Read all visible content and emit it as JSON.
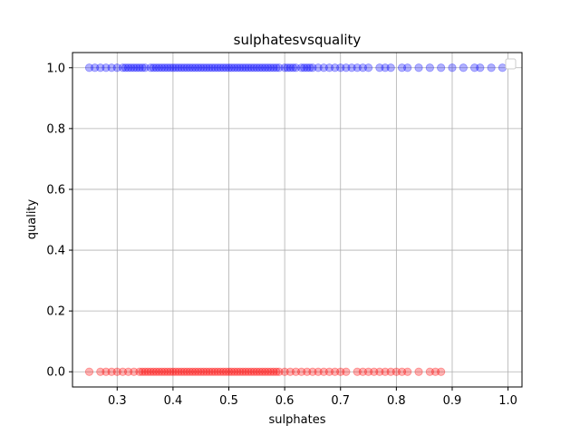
{
  "chart_data": {
    "type": "scatter",
    "title": "sulphatesvsquality",
    "xlabel": "sulphates",
    "ylabel": "quality",
    "xlim": [
      0.22,
      1.025
    ],
    "ylim": [
      -0.05,
      1.05
    ],
    "xticks": [
      0.3,
      0.4,
      0.5,
      0.6,
      0.7,
      0.8,
      0.9,
      1.0
    ],
    "xtick_labels": [
      "0.3",
      "0.4",
      "0.5",
      "0.6",
      "0.7",
      "0.8",
      "0.9",
      "1.0"
    ],
    "yticks": [
      0.0,
      0.2,
      0.4,
      0.6,
      0.8,
      1.0
    ],
    "ytick_labels": [
      "0.0",
      "0.2",
      "0.4",
      "0.6",
      "0.8",
      "1.0"
    ],
    "grid": true,
    "legend": "top-right",
    "series": [
      {
        "color": "#0000ff",
        "y": 1,
        "x": [
          0.25,
          0.26,
          0.27,
          0.28,
          0.29,
          0.3,
          0.31,
          0.315,
          0.32,
          0.325,
          0.33,
          0.335,
          0.34,
          0.345,
          0.35,
          0.36,
          0.365,
          0.37,
          0.375,
          0.38,
          0.385,
          0.39,
          0.395,
          0.4,
          0.405,
          0.41,
          0.415,
          0.42,
          0.425,
          0.43,
          0.435,
          0.44,
          0.445,
          0.45,
          0.455,
          0.46,
          0.465,
          0.47,
          0.475,
          0.48,
          0.485,
          0.49,
          0.495,
          0.5,
          0.505,
          0.51,
          0.515,
          0.52,
          0.525,
          0.53,
          0.535,
          0.54,
          0.545,
          0.55,
          0.555,
          0.56,
          0.565,
          0.57,
          0.575,
          0.58,
          0.585,
          0.59,
          0.6,
          0.605,
          0.61,
          0.615,
          0.62,
          0.63,
          0.635,
          0.64,
          0.645,
          0.65,
          0.66,
          0.67,
          0.68,
          0.69,
          0.7,
          0.71,
          0.72,
          0.73,
          0.74,
          0.75,
          0.77,
          0.78,
          0.79,
          0.81,
          0.82,
          0.84,
          0.86,
          0.88,
          0.9,
          0.92,
          0.94,
          0.95,
          0.97,
          0.99
        ]
      },
      {
        "color": "#ff0000",
        "y": 0,
        "x": [
          0.25,
          0.27,
          0.28,
          0.29,
          0.3,
          0.31,
          0.32,
          0.33,
          0.34,
          0.345,
          0.35,
          0.355,
          0.36,
          0.365,
          0.37,
          0.375,
          0.38,
          0.385,
          0.39,
          0.395,
          0.4,
          0.405,
          0.41,
          0.415,
          0.42,
          0.425,
          0.43,
          0.435,
          0.44,
          0.445,
          0.45,
          0.455,
          0.46,
          0.465,
          0.47,
          0.475,
          0.48,
          0.485,
          0.49,
          0.495,
          0.5,
          0.505,
          0.51,
          0.515,
          0.52,
          0.525,
          0.53,
          0.535,
          0.54,
          0.545,
          0.55,
          0.555,
          0.56,
          0.565,
          0.57,
          0.575,
          0.58,
          0.585,
          0.59,
          0.6,
          0.61,
          0.62,
          0.63,
          0.64,
          0.65,
          0.66,
          0.67,
          0.68,
          0.69,
          0.7,
          0.71,
          0.73,
          0.74,
          0.75,
          0.76,
          0.77,
          0.78,
          0.79,
          0.8,
          0.81,
          0.82,
          0.84,
          0.86,
          0.87,
          0.88
        ]
      }
    ]
  }
}
